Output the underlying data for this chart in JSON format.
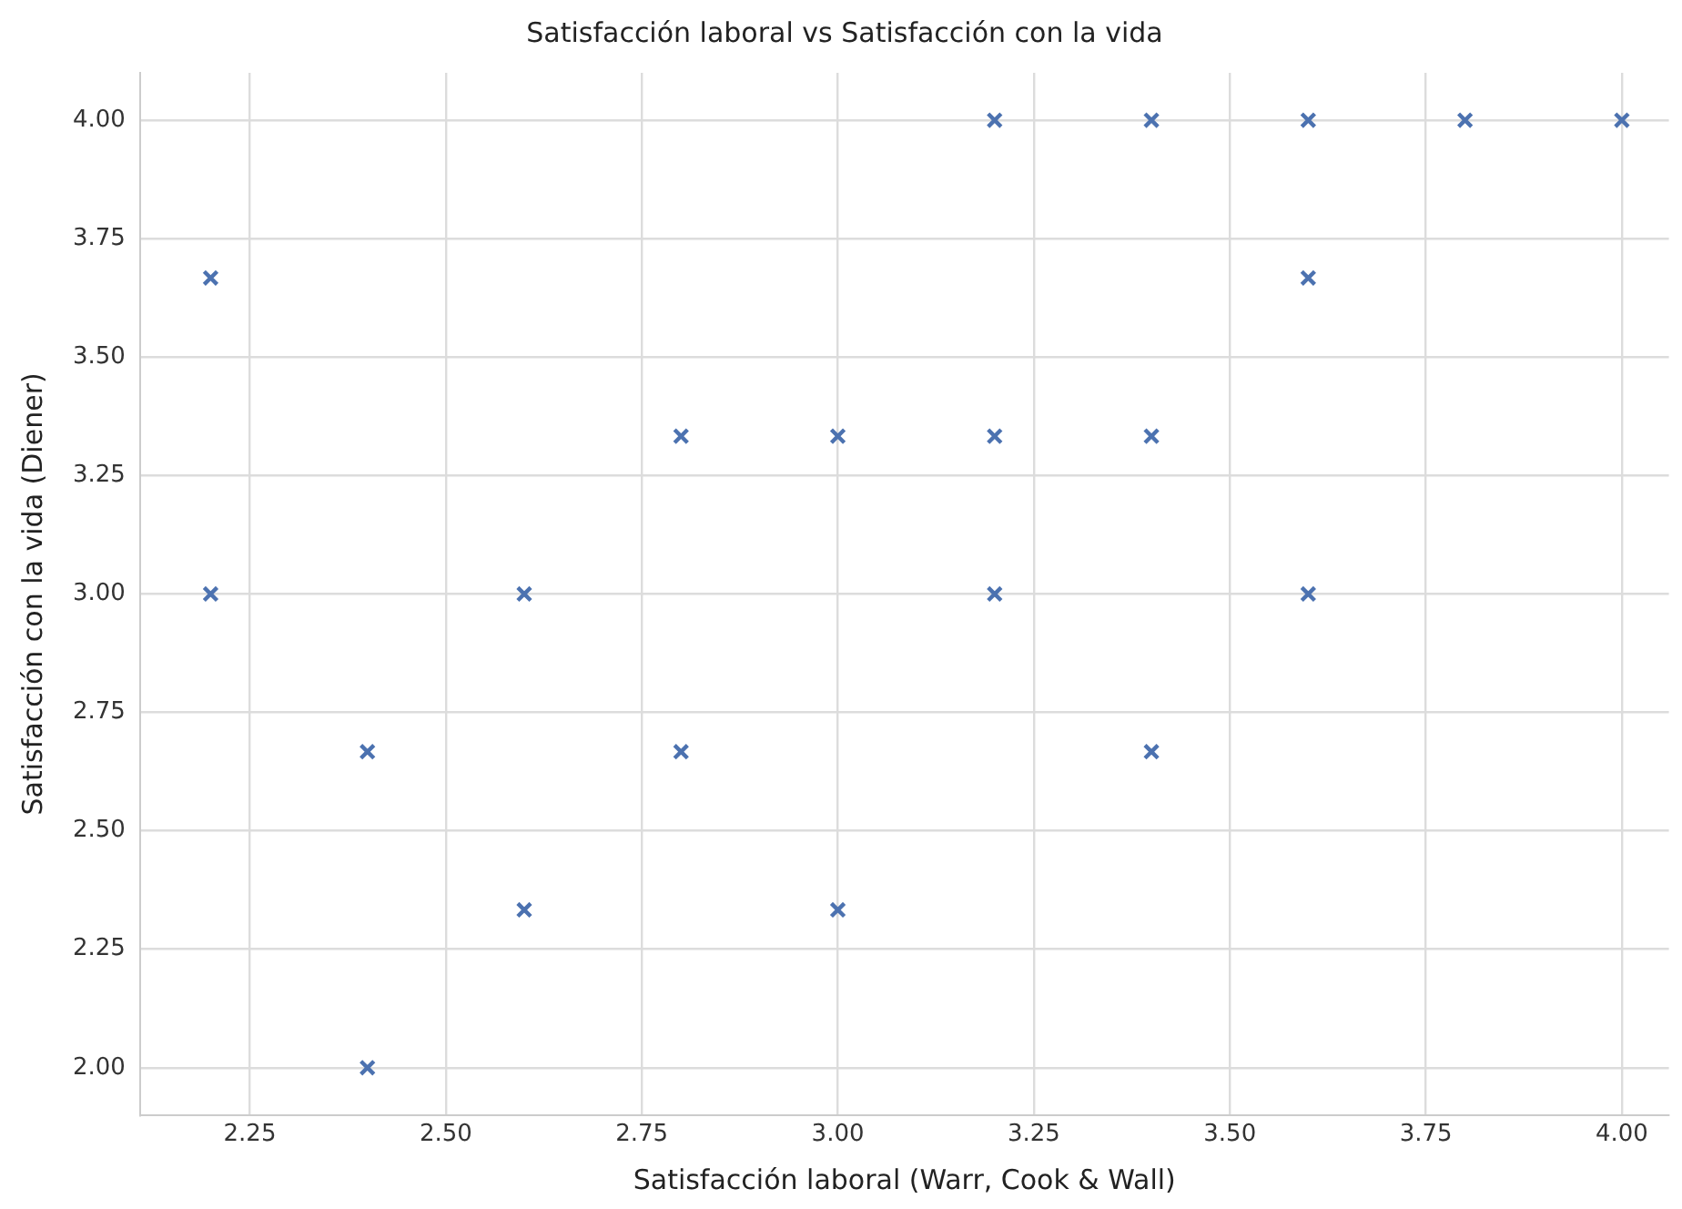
{
  "chart_data": {
    "type": "scatter",
    "title": "Satisfacción laboral vs Satisfacción con la vida",
    "xlabel": "Satisfacción laboral (Warr, Cook & Wall)",
    "ylabel": "Satisfacción con la vida (Diener)",
    "x": [
      2.2,
      2.2,
      2.4,
      2.4,
      2.6,
      2.6,
      2.8,
      2.8,
      3.0,
      3.0,
      3.2,
      3.2,
      3.2,
      3.4,
      3.4,
      3.4,
      3.6,
      3.6,
      3.6,
      3.8,
      4.0
    ],
    "series": [
      {
        "color": "#4c72b0",
        "values": [
          3.667,
          3.0,
          2.667,
          2.0,
          3.0,
          2.333,
          3.333,
          2.667,
          3.333,
          2.333,
          4.0,
          3.333,
          3.0,
          4.0,
          3.333,
          2.667,
          4.0,
          3.667,
          3.0,
          4.0,
          4.0
        ]
      }
    ],
    "xlim": [
      2.11,
      4.06
    ],
    "ylim": [
      1.9,
      4.1
    ],
    "xticks": [
      2.25,
      {
        "value": 2.5,
        "label": "2.50"
      },
      2.75,
      {
        "value": 3,
        "label": "3.00"
      },
      3.25,
      {
        "value": 3.5,
        "label": "3.50"
      },
      3.75,
      {
        "value": 4,
        "label": "4.00"
      }
    ],
    "yticks": [
      {
        "value": 2,
        "label": "2.00"
      },
      2.25,
      {
        "value": 2.5,
        "label": "2.50"
      },
      2.75,
      {
        "value": 3,
        "label": "3.00"
      },
      3.25,
      {
        "value": 3.5,
        "label": "3.50"
      },
      3.75,
      {
        "value": 4,
        "label": "4.00"
      }
    ],
    "grid": true,
    "marker": "cross",
    "legend": false
  }
}
